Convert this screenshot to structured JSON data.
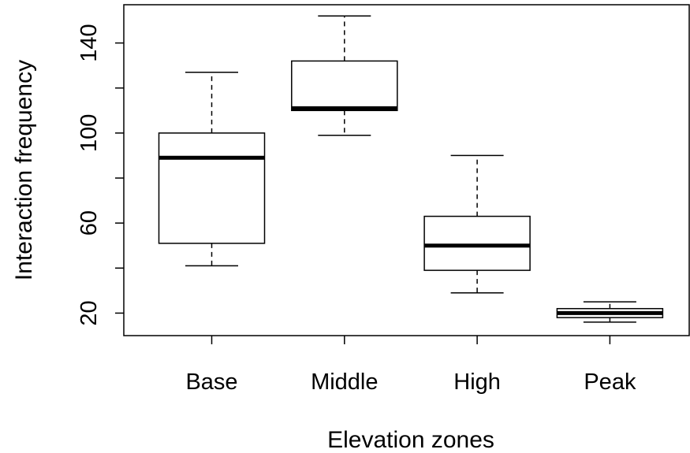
{
  "chart_data": {
    "type": "boxplot",
    "title": "",
    "xlabel": "Elevation zones",
    "ylabel": "Interaction frequency",
    "ylim": [
      10,
      157
    ],
    "yticks": [
      20,
      60,
      100,
      140
    ],
    "categories": [
      "Base",
      "Middle",
      "High",
      "Peak"
    ],
    "boxes": [
      {
        "category": "Base",
        "min": 41,
        "q1": 51,
        "median": 89,
        "q3": 100,
        "max": 127
      },
      {
        "category": "Middle",
        "min": 99,
        "q1": 110,
        "median": 111,
        "q3": 132,
        "max": 152
      },
      {
        "category": "High",
        "min": 29,
        "q1": 39,
        "median": 50,
        "q3": 63,
        "max": 90
      },
      {
        "category": "Peak",
        "min": 16,
        "q1": 18,
        "median": 20,
        "q3": 22,
        "max": 25
      }
    ],
    "grid": false,
    "legend": "none"
  }
}
